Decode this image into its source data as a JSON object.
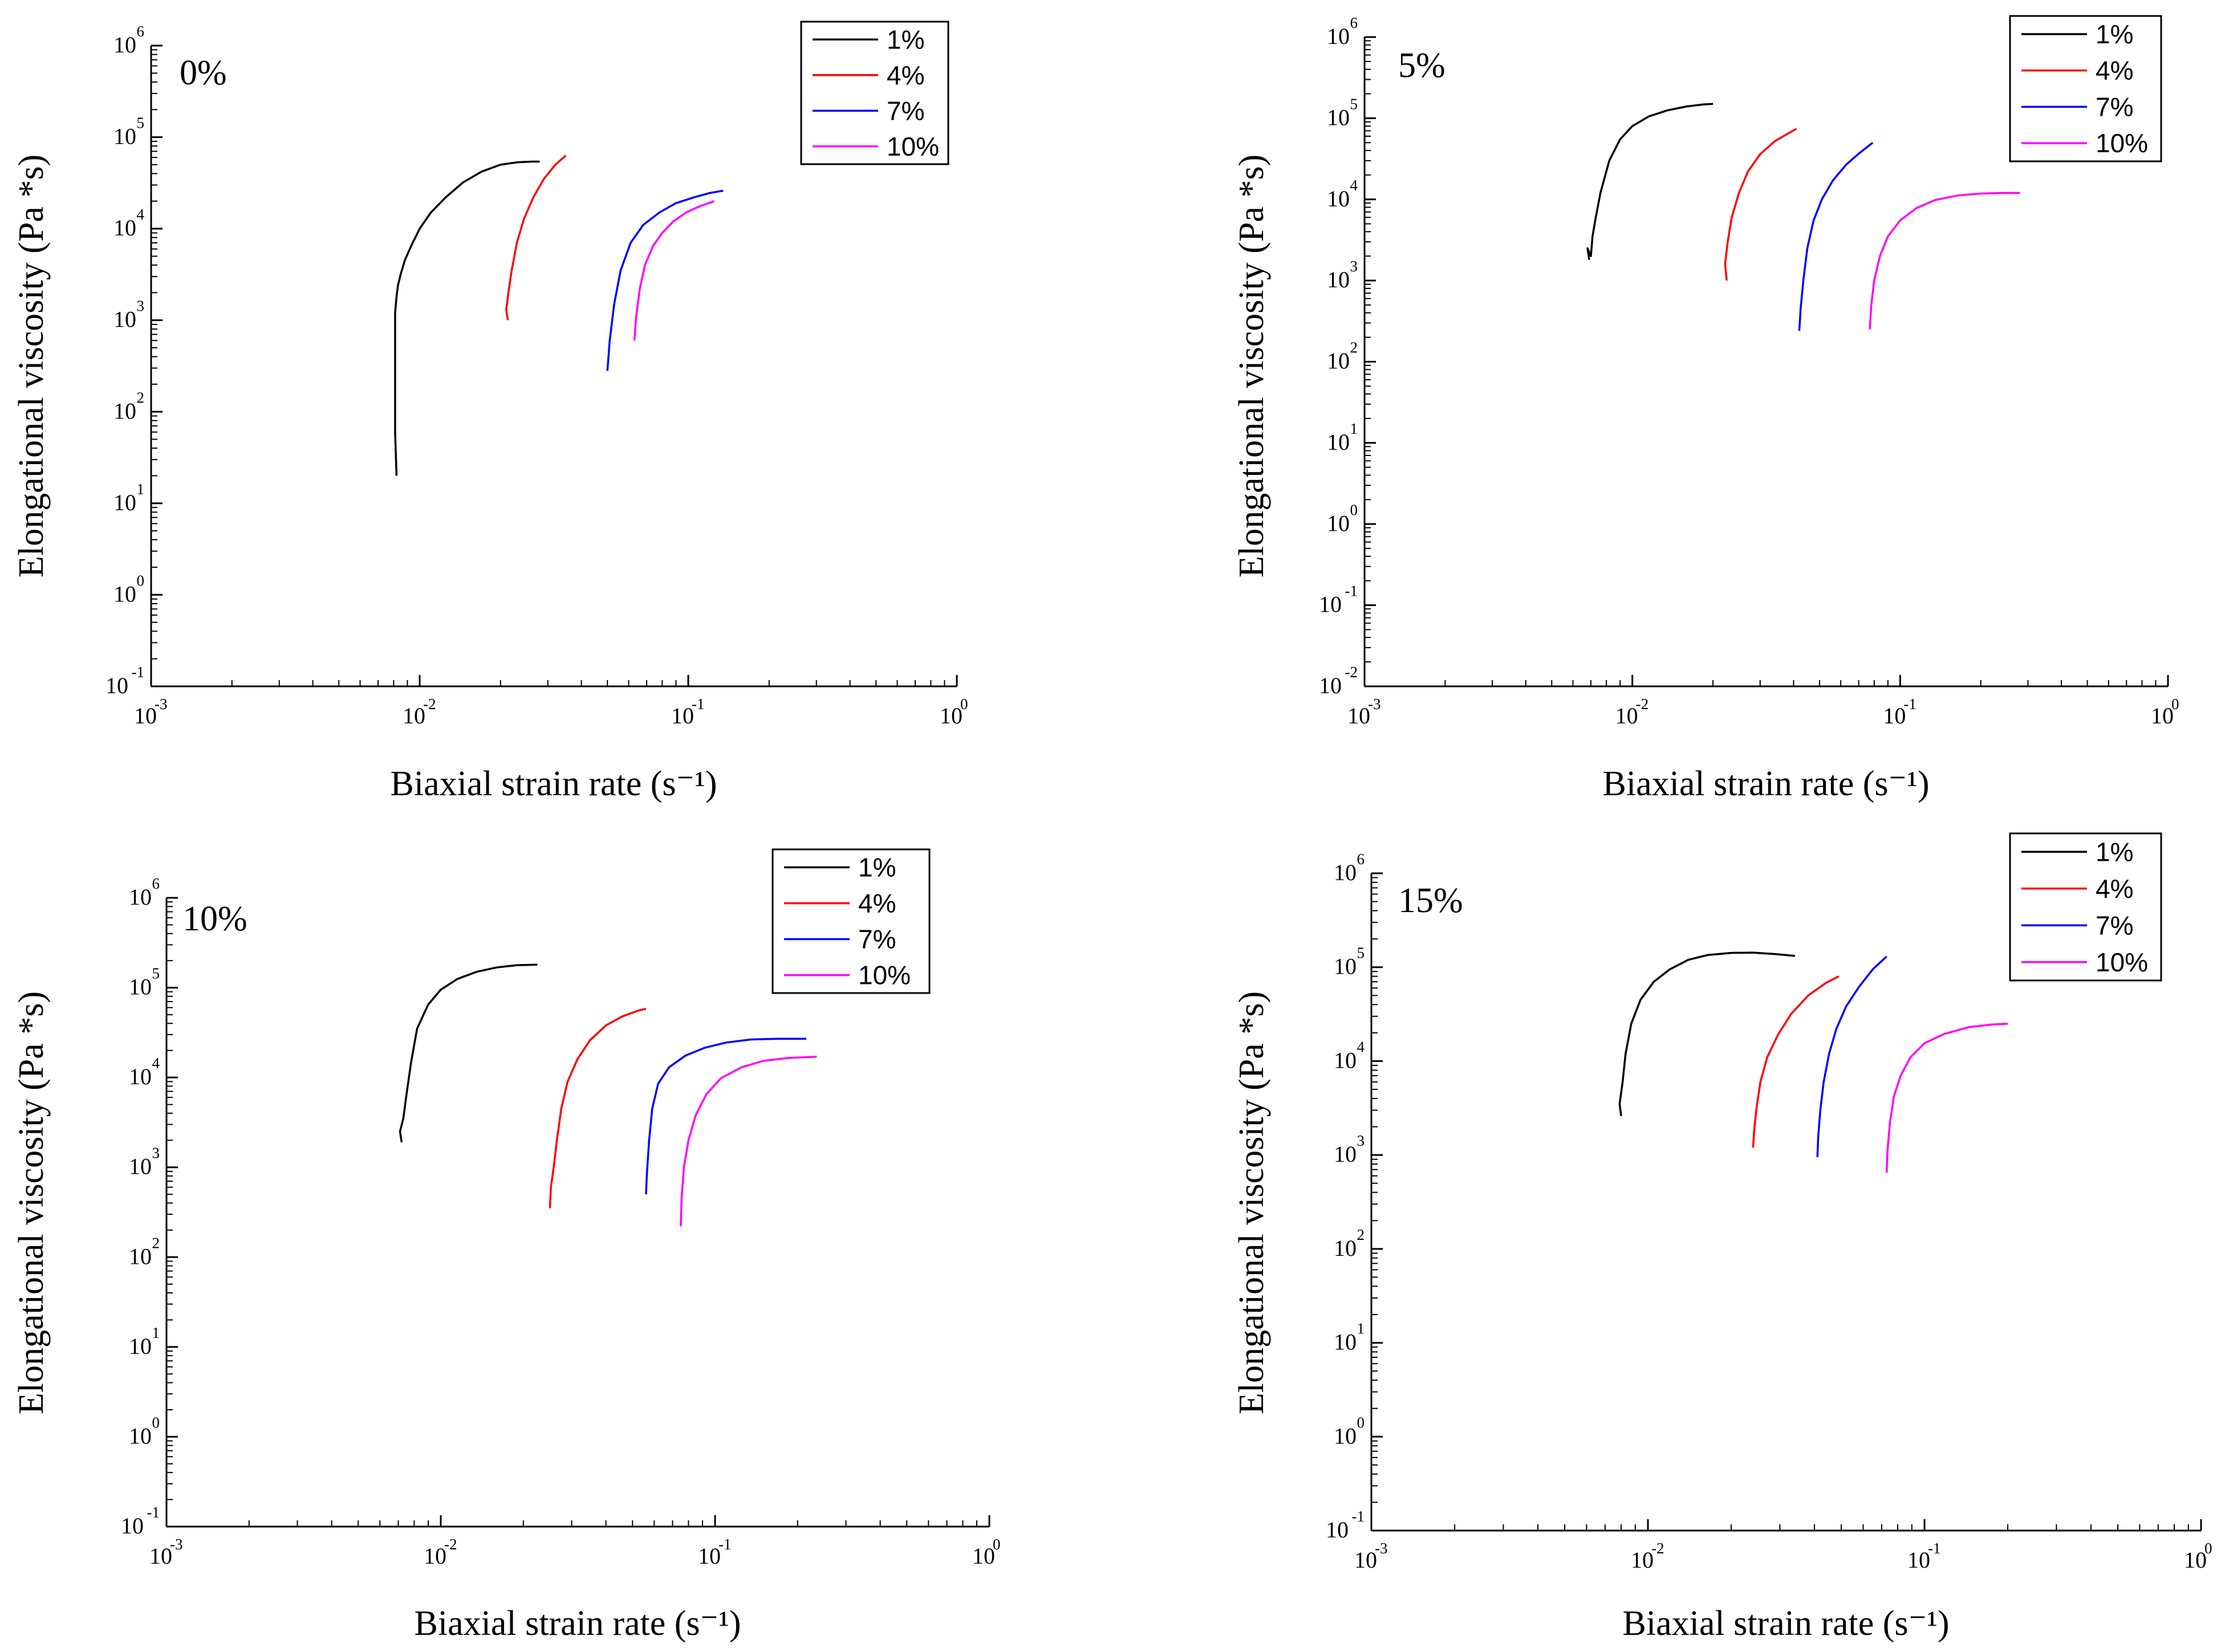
{
  "chart_data": [
    {
      "type": "line",
      "panel_label": "0%",
      "xlabel": "Biaxial strain rate (s⁻¹)",
      "ylabel": "Elongational viscosity (Pa *s)",
      "xscale": "log",
      "yscale": "log",
      "xlim": [
        0.001,
        1
      ],
      "ylim": [
        0.1,
        1000000
      ],
      "x_ticks": [
        "10^-3",
        "10^-2",
        "10^-1",
        "10^0"
      ],
      "y_ticks": [
        "10^-1",
        "10^0",
        "10^1",
        "10^2",
        "10^3",
        "10^4",
        "10^5",
        "10^6"
      ],
      "legend_position": "top-right",
      "series": [
        {
          "name": "1%",
          "color": "#000000",
          "x": [
            0.0082,
            0.0081,
            0.0081,
            0.0081,
            0.0081,
            0.0082,
            0.0083,
            0.0085,
            0.0088,
            0.0093,
            0.01,
            0.011,
            0.0125,
            0.0145,
            0.017,
            0.02,
            0.023,
            0.026,
            0.028
          ],
          "y": [
            20,
            60,
            200,
            600,
            1200,
            1800,
            2400,
            3200,
            4500,
            6500,
            10000,
            15000,
            22000,
            32000,
            42000,
            50000,
            53000,
            54000,
            54000
          ]
        },
        {
          "name": "4%",
          "color": "#ff0000",
          "x": [
            0.0213,
            0.021,
            0.0214,
            0.022,
            0.023,
            0.0245,
            0.0265,
            0.029,
            0.032,
            0.035
          ],
          "y": [
            1000,
            1300,
            2000,
            3500,
            7000,
            13000,
            22000,
            35000,
            50000,
            63000
          ]
        },
        {
          "name": "7%",
          "color": "#0000ff",
          "x": [
            0.05,
            0.051,
            0.053,
            0.056,
            0.061,
            0.068,
            0.078,
            0.09,
            0.105,
            0.12,
            0.135
          ],
          "y": [
            280,
            600,
            1500,
            3500,
            7000,
            11000,
            15000,
            19000,
            22000,
            24500,
            26000
          ]
        },
        {
          "name": "10%",
          "color": "#ff00ff",
          "x": [
            0.063,
            0.064,
            0.066,
            0.069,
            0.074,
            0.08,
            0.088,
            0.098,
            0.11,
            0.125
          ],
          "y": [
            600,
            1100,
            2200,
            4000,
            6500,
            9000,
            12000,
            15000,
            17500,
            20000
          ]
        }
      ]
    },
    {
      "type": "line",
      "panel_label": "5%",
      "xlabel": "Biaxial strain rate (s⁻¹)",
      "ylabel": "Elongational viscosity (Pa *s)",
      "xscale": "log",
      "yscale": "log",
      "xlim": [
        0.001,
        1
      ],
      "ylim": [
        0.01,
        1000000
      ],
      "x_ticks": [
        "10^-3",
        "10^-2",
        "10^-1",
        "10^0"
      ],
      "y_ticks": [
        "10^-2",
        "10^-1",
        "10^0",
        "10^1",
        "10^2",
        "10^3",
        "10^4",
        "10^5",
        "10^6"
      ],
      "legend_position": "top-right",
      "series": [
        {
          "name": "1%",
          "color": "#000000",
          "x": [
            0.0069,
            0.0068,
            0.007,
            0.0071,
            0.0073,
            0.0076,
            0.0082,
            0.009,
            0.01,
            0.0115,
            0.0135,
            0.016,
            0.0185,
            0.02
          ],
          "y": [
            1800,
            2500,
            2000,
            3500,
            6000,
            12000,
            30000,
            55000,
            80000,
            105000,
            125000,
            140000,
            148000,
            150000
          ]
        },
        {
          "name": "4%",
          "color": "#ff0000",
          "x": [
            0.0225,
            0.0222,
            0.0227,
            0.0235,
            0.025,
            0.027,
            0.03,
            0.034,
            0.0385,
            0.041
          ],
          "y": [
            1000,
            1600,
            3000,
            6000,
            12000,
            22000,
            36000,
            52000,
            66000,
            74000
          ]
        },
        {
          "name": "7%",
          "color": "#0000ff",
          "x": [
            0.042,
            0.0425,
            0.0435,
            0.045,
            0.0475,
            0.051,
            0.056,
            0.063,
            0.071,
            0.079
          ],
          "y": [
            240,
            450,
            1000,
            2500,
            5500,
            10000,
            17000,
            27000,
            38000,
            50000
          ]
        },
        {
          "name": "10%",
          "color": "#ff00ff",
          "x": [
            0.077,
            0.078,
            0.08,
            0.084,
            0.09,
            0.1,
            0.115,
            0.135,
            0.165,
            0.2,
            0.24,
            0.28
          ],
          "y": [
            250,
            500,
            1000,
            2000,
            3500,
            5500,
            7800,
            9800,
            11200,
            11800,
            12000,
            12000
          ]
        }
      ]
    },
    {
      "type": "line",
      "panel_label": "10%",
      "xlabel": "Biaxial strain rate (s⁻¹)",
      "ylabel": "Elongational viscosity (Pa *s)",
      "xscale": "log",
      "yscale": "log",
      "xlim": [
        0.001,
        1
      ],
      "ylim": [
        0.1,
        1000000
      ],
      "x_ticks": [
        "10^-3",
        "10^-2",
        "10^-1",
        "10^0"
      ],
      "y_ticks": [
        "10^-1",
        "10^0",
        "10^1",
        "10^2",
        "10^3",
        "10^4",
        "10^5",
        "10^6"
      ],
      "legend_position": "top-right",
      "series": [
        {
          "name": "1%",
          "color": "#000000",
          "x": [
            0.0072,
            0.0071,
            0.0073,
            0.0075,
            0.0078,
            0.0082,
            0.009,
            0.01,
            0.0115,
            0.0135,
            0.016,
            0.019,
            0.0225
          ],
          "y": [
            1900,
            2500,
            3500,
            6500,
            15000,
            35000,
            65000,
            95000,
            125000,
            150000,
            168000,
            178000,
            180000
          ]
        },
        {
          "name": "4%",
          "color": "#ff0000",
          "x": [
            0.025,
            0.0252,
            0.0258,
            0.0265,
            0.0275,
            0.029,
            0.0315,
            0.035,
            0.04,
            0.046,
            0.053,
            0.056
          ],
          "y": [
            350,
            600,
            1000,
            2000,
            4500,
            9000,
            16000,
            26000,
            38000,
            48000,
            56000,
            58000
          ]
        },
        {
          "name": "7%",
          "color": "#0000ff",
          "x": [
            0.056,
            0.0565,
            0.0575,
            0.059,
            0.062,
            0.068,
            0.078,
            0.092,
            0.11,
            0.135,
            0.17,
            0.215
          ],
          "y": [
            500,
            900,
            2000,
            4500,
            8500,
            13000,
            17500,
            21500,
            24500,
            26500,
            27000,
            27000
          ]
        },
        {
          "name": "10%",
          "color": "#ff00ff",
          "x": [
            0.075,
            0.0755,
            0.077,
            0.08,
            0.085,
            0.093,
            0.105,
            0.125,
            0.15,
            0.185,
            0.235
          ],
          "y": [
            220,
            450,
            1000,
            2000,
            3800,
            6500,
            9800,
            13000,
            15300,
            16500,
            17000
          ]
        }
      ]
    },
    {
      "type": "line",
      "panel_label": "15%",
      "xlabel": "Biaxial strain rate (s⁻¹)",
      "ylabel": "Elongational viscosity (Pa *s)",
      "xscale": "log",
      "yscale": "log",
      "xlim": [
        0.001,
        1
      ],
      "ylim": [
        0.1,
        1000000
      ],
      "x_ticks": [
        "10^-3",
        "10^-2",
        "10^-1",
        "10^0"
      ],
      "y_ticks": [
        "10^-1",
        "10^0",
        "10^1",
        "10^2",
        "10^3",
        "10^4",
        "10^5",
        "10^6"
      ],
      "legend_position": "top-right",
      "series": [
        {
          "name": "1%",
          "color": "#000000",
          "x": [
            0.008,
            0.0079,
            0.0081,
            0.0083,
            0.0087,
            0.0094,
            0.0105,
            0.012,
            0.014,
            0.0165,
            0.02,
            0.024,
            0.029,
            0.034
          ],
          "y": [
            2600,
            3500,
            6000,
            12000,
            25000,
            45000,
            70000,
            95000,
            120000,
            135000,
            142000,
            143000,
            138000,
            132000
          ]
        },
        {
          "name": "4%",
          "color": "#ff0000",
          "x": [
            0.024,
            0.0242,
            0.0247,
            0.0255,
            0.027,
            0.0295,
            0.033,
            0.038,
            0.044,
            0.049
          ],
          "y": [
            1200,
            1800,
            3200,
            6000,
            11000,
            19000,
            32000,
            50000,
            68000,
            80000
          ]
        },
        {
          "name": "7%",
          "color": "#0000ff",
          "x": [
            0.041,
            0.0413,
            0.042,
            0.0432,
            0.0452,
            0.048,
            0.052,
            0.058,
            0.065,
            0.073
          ],
          "y": [
            950,
            1600,
            3000,
            6000,
            12000,
            22000,
            38000,
            62000,
            95000,
            130000
          ]
        },
        {
          "name": "10%",
          "color": "#ff00ff",
          "x": [
            0.073,
            0.0735,
            0.075,
            0.0775,
            0.082,
            0.089,
            0.1,
            0.118,
            0.145,
            0.175,
            0.2
          ],
          "y": [
            650,
            1100,
            2200,
            4200,
            7000,
            11000,
            15500,
            19500,
            23000,
            24500,
            25000
          ]
        }
      ]
    }
  ]
}
